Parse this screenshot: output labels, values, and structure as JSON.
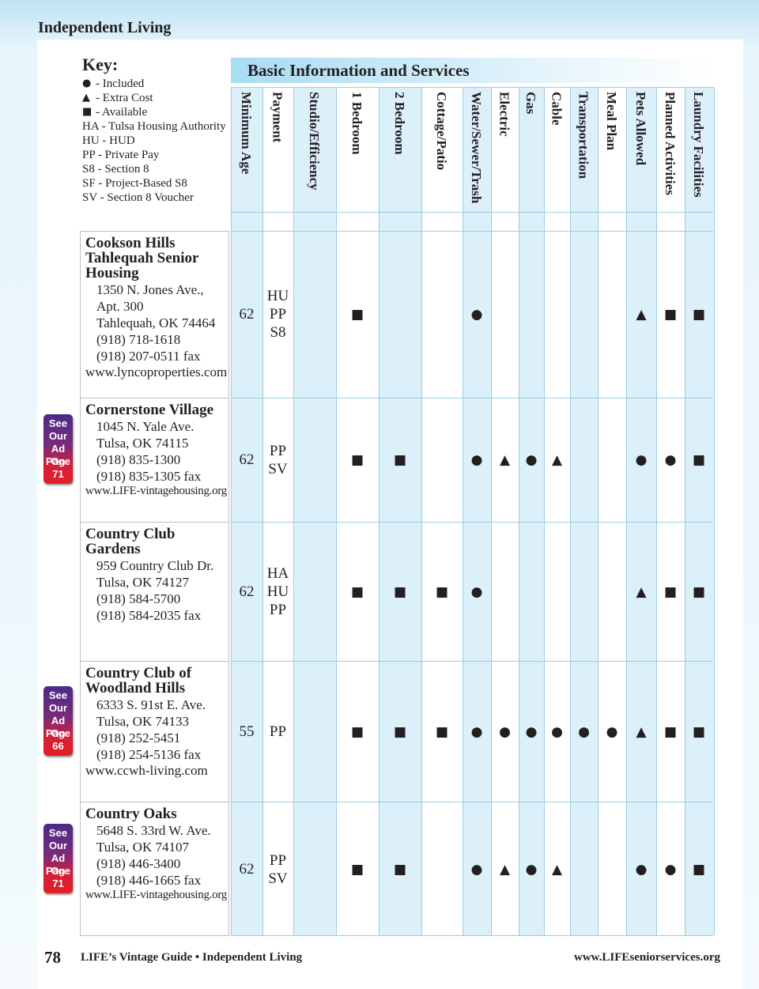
{
  "header": {
    "section": "Independent Living"
  },
  "key": {
    "title": "Key:",
    "items": [
      {
        "symbol": "●",
        "text": "- Included"
      },
      {
        "symbol": "▲",
        "text": "- Extra Cost"
      },
      {
        "symbol": "■",
        "text": "- Available"
      },
      {
        "text": "HA - Tulsa Housing Authority"
      },
      {
        "text": "HU - HUD"
      },
      {
        "text": "PP - Private Pay"
      },
      {
        "text": "S8 - Section 8"
      },
      {
        "text": "SF - Project-Based S8"
      },
      {
        "text": "SV - Section 8 Voucher"
      }
    ]
  },
  "table": {
    "title": "Basic Information and Services",
    "columns": [
      "Minimum Age",
      "Payment",
      "Studio/Efficiency",
      "1 Bedroom",
      "2 Bedroom",
      "Cottage/Patio",
      "Water/Sewer/Trash",
      "Electric",
      "Gas",
      "Cable",
      "Transportation",
      "Meal Plan",
      "Pets Allowed",
      "Planned Activities",
      "Laundry Facilities"
    ],
    "rows": [
      {
        "name": [
          "Cookson Hills",
          "Tahlequah Senior",
          "Housing"
        ],
        "address": [
          "1350 N. Jones Ave.,",
          "Apt. 300",
          "Tahlequah, OK 74464",
          "(918) 718-1618",
          "(918) 207-0511 fax"
        ],
        "website": "www.lyncoproperties.com",
        "min_age": 62,
        "payment": [
          "HU",
          "PP",
          "S8"
        ],
        "services": [
          null,
          "■",
          null,
          null,
          "●",
          null,
          null,
          null,
          null,
          null,
          "▲",
          "■",
          "■"
        ]
      },
      {
        "name": [
          "Cornerstone Village"
        ],
        "address": [
          "1045 N. Yale Ave.",
          "Tulsa, OK 74115",
          "(918) 835-1300",
          "(918) 835-1305 fax"
        ],
        "website": "www.LIFE-vintagehousing.org",
        "min_age": 62,
        "payment": [
          "PP",
          "SV"
        ],
        "services": [
          null,
          "■",
          "■",
          null,
          "●",
          "▲",
          "●",
          "▲",
          null,
          null,
          "●",
          "●",
          "■"
        ],
        "ad": [
          "See",
          "Our",
          "Ad On",
          "Page",
          "71"
        ]
      },
      {
        "name": [
          "Country Club",
          "Gardens"
        ],
        "address": [
          "959 Country Club Dr.",
          "Tulsa, OK 74127",
          "(918) 584-5700",
          "(918) 584-2035 fax"
        ],
        "min_age": 62,
        "payment": [
          "HA",
          "HU",
          "PP"
        ],
        "services": [
          null,
          "■",
          "■",
          "■",
          "●",
          null,
          null,
          null,
          null,
          null,
          "▲",
          "■",
          "■"
        ]
      },
      {
        "name": [
          "Country Club of",
          "Woodland Hills"
        ],
        "address": [
          "6333 S. 91st E. Ave.",
          "Tulsa, OK 74133",
          "(918) 252-5451",
          "(918) 254-5136 fax"
        ],
        "website": "www.ccwh-living.com",
        "min_age": 55,
        "payment": [
          "PP"
        ],
        "services": [
          null,
          "■",
          "■",
          "■",
          "●",
          "●",
          "●",
          "●",
          "●",
          "●",
          "▲",
          "■",
          "■"
        ],
        "ad": [
          "See",
          "Our",
          "Ad On",
          "Page",
          "66"
        ]
      },
      {
        "name": [
          "Country Oaks"
        ],
        "address": [
          "5648 S. 33rd W. Ave.",
          "Tulsa, OK 74107",
          "(918) 446-3400",
          "(918) 446-1665 fax"
        ],
        "website": "www.LIFE-vintagehousing.org",
        "min_age": 62,
        "payment": [
          "PP",
          "SV"
        ],
        "services": [
          null,
          "■",
          "■",
          null,
          "●",
          "▲",
          "●",
          "▲",
          null,
          null,
          "●",
          "●",
          "■"
        ],
        "ad": [
          "See",
          "Our",
          "Ad On",
          "Page",
          "71"
        ]
      }
    ]
  },
  "footer": {
    "page": "78",
    "guide": "LIFE’s Vintage Guide • Independent Living",
    "url": "www.LIFEseniorservices.org"
  }
}
